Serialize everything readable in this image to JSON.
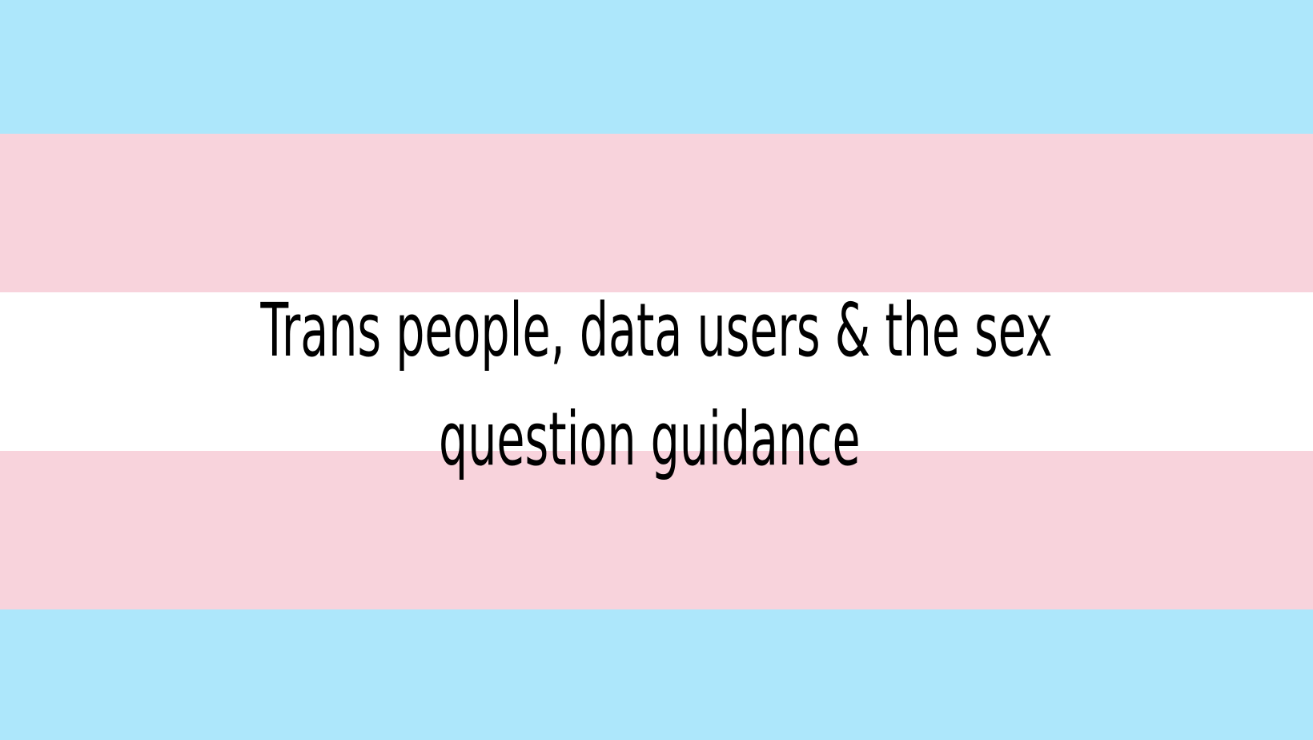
{
  "title": {
    "line1": "Trans people, data users & the sex",
    "line2": "question guidance"
  },
  "flag": {
    "stripes": [
      "#ADE7FB",
      "#F8D3DC",
      "#FFFFFF",
      "#F8D3DC",
      "#ADE7FB"
    ]
  }
}
